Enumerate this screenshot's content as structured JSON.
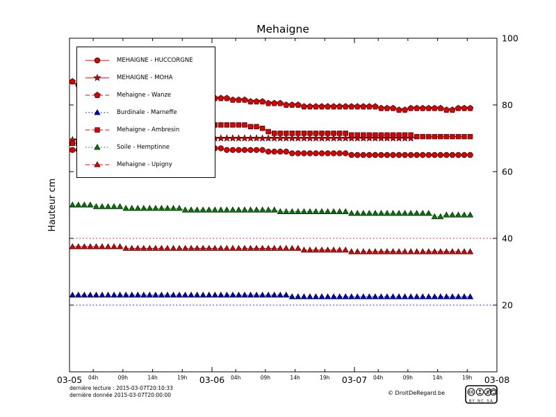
{
  "footer": {
    "line1": "dernière lecture : 2015-03-07T20:10:33",
    "line2": "dernière donnée  2015-03-07T20:00:00",
    "copyright": "© DroitDeRegard.be",
    "license": {
      "logo": "CC",
      "terms": "BY NC SA"
    }
  },
  "chart_data": {
    "type": "line",
    "title": "Mehaigne",
    "xlabel": "",
    "ylabel": "Hauteur cm",
    "ylim": [
      0,
      100
    ],
    "yticks": [
      20,
      40,
      60,
      80,
      100
    ],
    "x_domain_hours": [
      0,
      72
    ],
    "x_major_ticks": [
      {
        "h": 0,
        "label": "03-05"
      },
      {
        "h": 24,
        "label": "03-06"
      },
      {
        "h": 48,
        "label": "03-07"
      },
      {
        "h": 72,
        "label": "03-08"
      }
    ],
    "x_minor_ticks": [
      {
        "h": 4,
        "label": "04h"
      },
      {
        "h": 9,
        "label": "09h"
      },
      {
        "h": 14,
        "label": "14h"
      },
      {
        "h": 19,
        "label": "19h"
      },
      {
        "h": 28,
        "label": "04h"
      },
      {
        "h": 33,
        "label": "09h"
      },
      {
        "h": 38,
        "label": "14h"
      },
      {
        "h": 43,
        "label": "19h"
      },
      {
        "h": 52,
        "label": "04h"
      },
      {
        "h": 57,
        "label": "09h"
      },
      {
        "h": 62,
        "label": "14h"
      },
      {
        "h": 67,
        "label": "19h"
      }
    ],
    "grid": "off",
    "legend_position": "upper-left",
    "start_hour": 0.5,
    "step_hours": 1,
    "thresholds": [
      {
        "value": 40,
        "color": "#dd0000",
        "style": "dotted"
      },
      {
        "value": 20,
        "color": "#0000cc",
        "style": "dotted"
      }
    ],
    "series": [
      {
        "name": "MEHAIGNE - HUCCORGNE",
        "color": "#dd0000",
        "marker": "circle",
        "line": "solid",
        "values": [
          66.5,
          66.5,
          66.5,
          66.5,
          66.5,
          66.5,
          66.5,
          66.5,
          66.5,
          66.5,
          66.5,
          66.5,
          66.5,
          66.5,
          66.5,
          66.5,
          66.5,
          66.5,
          66.5,
          66.5,
          66.5,
          66.5,
          66.5,
          67,
          67,
          67,
          66.5,
          66.5,
          66.5,
          66.5,
          66.5,
          66.5,
          66.5,
          66,
          66,
          66,
          66,
          65.5,
          65.5,
          65.5,
          65.5,
          65.5,
          65.5,
          65.5,
          65.5,
          65.5,
          65.5,
          65,
          65,
          65,
          65,
          65,
          65,
          65,
          65,
          65,
          65,
          65,
          65,
          65,
          65,
          65,
          65,
          65,
          65,
          65,
          65,
          65
        ]
      },
      {
        "name": "MEHAIGNE - MOHA",
        "color": "#dd0000",
        "marker": "star",
        "line": "solid",
        "values": [
          69.5,
          69.5,
          69.5,
          69.5,
          69.5,
          69.5,
          69.5,
          69.5,
          69.5,
          69.5,
          70,
          70,
          70,
          70,
          70,
          70,
          70,
          70,
          70,
          70,
          70,
          70,
          70,
          70,
          70,
          70,
          70,
          70,
          70,
          70,
          70,
          70,
          70,
          70,
          70,
          70,
          70,
          70,
          70,
          70,
          70,
          70,
          70,
          70,
          70,
          70,
          70,
          70,
          70,
          70,
          70,
          70,
          70,
          70,
          70,
          70,
          70,
          70
        ]
      },
      {
        "name": "Mehaigne - Wanze",
        "color": "#dd0000",
        "marker": "pentagon",
        "line": "dashed",
        "values": [
          87,
          86,
          85.5,
          85,
          84.5,
          84,
          83.5,
          83.5,
          83,
          83,
          82.5,
          82.5,
          82.5,
          82,
          82,
          82,
          82,
          82,
          82,
          82,
          82,
          82,
          82,
          82,
          82,
          82,
          82,
          81.5,
          81.5,
          81.5,
          81,
          81,
          81,
          80.5,
          80.5,
          80.5,
          80,
          80,
          80,
          79.5,
          79.5,
          79.5,
          79.5,
          79.5,
          79.5,
          79.5,
          79.5,
          79.5,
          79.5,
          79.5,
          79.5,
          79.5,
          79,
          79,
          79,
          78.5,
          78.5,
          79,
          79,
          79,
          79,
          79,
          79,
          78.5,
          78.5,
          79,
          79,
          79
        ]
      },
      {
        "name": "Burdinale - Marneffe",
        "color": "#0000cc",
        "marker": "triangle",
        "line": "dotted",
        "values": [
          23,
          23,
          23,
          23,
          23,
          23,
          23,
          23,
          23,
          23,
          23,
          23,
          23,
          23,
          23,
          23,
          23,
          23,
          23,
          23,
          23,
          23,
          23,
          23,
          23,
          23,
          23,
          23,
          23,
          23,
          23,
          23,
          23,
          23,
          23,
          23,
          23,
          22.5,
          22.5,
          22.5,
          22.5,
          22.5,
          22.5,
          22.5,
          22.5,
          22.5,
          22.5,
          22.5,
          22.5,
          22.5,
          22.5,
          22.5,
          22.5,
          22.5,
          22.5,
          22.5,
          22.5,
          22.5,
          22.5,
          22.5,
          22.5,
          22.5,
          22.5,
          22.5,
          22.5,
          22.5,
          22.5,
          22.5
        ]
      },
      {
        "name": "Mehaigne - Ambresin",
        "color": "#dd0000",
        "marker": "square",
        "line": "dashed",
        "values": [
          68.5,
          68.5,
          68.5,
          68.5,
          68.5,
          68.5,
          68.5,
          68.5,
          68.5,
          68.5,
          68.5,
          68.5,
          68.5,
          68.5,
          68.5,
          68.5,
          68.5,
          68.5,
          68.5,
          68.5,
          69,
          70,
          71.5,
          73,
          74,
          74,
          74,
          74,
          74,
          74,
          73.5,
          73.5,
          73,
          72,
          71.5,
          71.5,
          71.5,
          71.5,
          71.5,
          71.5,
          71.5,
          71.5,
          71.5,
          71.5,
          71.5,
          71.5,
          71.5,
          71,
          71,
          71,
          71,
          71,
          71,
          71,
          71,
          71,
          71,
          71,
          70.5,
          70.5,
          70.5,
          70.5,
          70.5,
          70.5,
          70.5,
          70.5,
          70.5,
          70.5
        ]
      },
      {
        "name": "Soile - Hemptinne",
        "color": "#007a00",
        "marker": "triangle",
        "line": "dotted",
        "values": [
          50,
          50,
          50,
          50,
          49.5,
          49.5,
          49.5,
          49.5,
          49.5,
          49,
          49,
          49,
          49,
          49,
          49,
          49,
          49,
          49,
          49,
          48.5,
          48.5,
          48.5,
          48.5,
          48.5,
          48.5,
          48.5,
          48.5,
          48.5,
          48.5,
          48.5,
          48.5,
          48.5,
          48.5,
          48.5,
          48.5,
          48,
          48,
          48,
          48,
          48,
          48,
          48,
          48,
          48,
          48,
          48,
          48,
          47.5,
          47.5,
          47.5,
          47.5,
          47.5,
          47.5,
          47.5,
          47.5,
          47.5,
          47.5,
          47.5,
          47.5,
          47.5,
          47.5,
          46.5,
          46.5,
          47,
          47,
          47,
          47,
          47
        ]
      },
      {
        "name": "Mehaigne - Upigny",
        "color": "#dd0000",
        "marker": "triangle",
        "line": "dashed",
        "values": [
          37.5,
          37.5,
          37.5,
          37.5,
          37.5,
          37.5,
          37.5,
          37.5,
          37.5,
          37,
          37,
          37,
          37,
          37,
          37,
          37,
          37,
          37,
          37,
          37,
          37,
          37,
          37,
          37,
          37,
          37,
          37,
          37,
          37,
          37,
          37,
          37,
          37,
          37,
          37,
          37,
          37,
          37,
          37,
          36.5,
          36.5,
          36.5,
          36.5,
          36.5,
          36.5,
          36.5,
          36.5,
          36,
          36,
          36,
          36,
          36,
          36,
          36,
          36,
          36,
          36,
          36,
          36,
          36,
          36,
          36,
          36,
          36,
          36,
          36,
          36,
          36
        ]
      }
    ]
  }
}
